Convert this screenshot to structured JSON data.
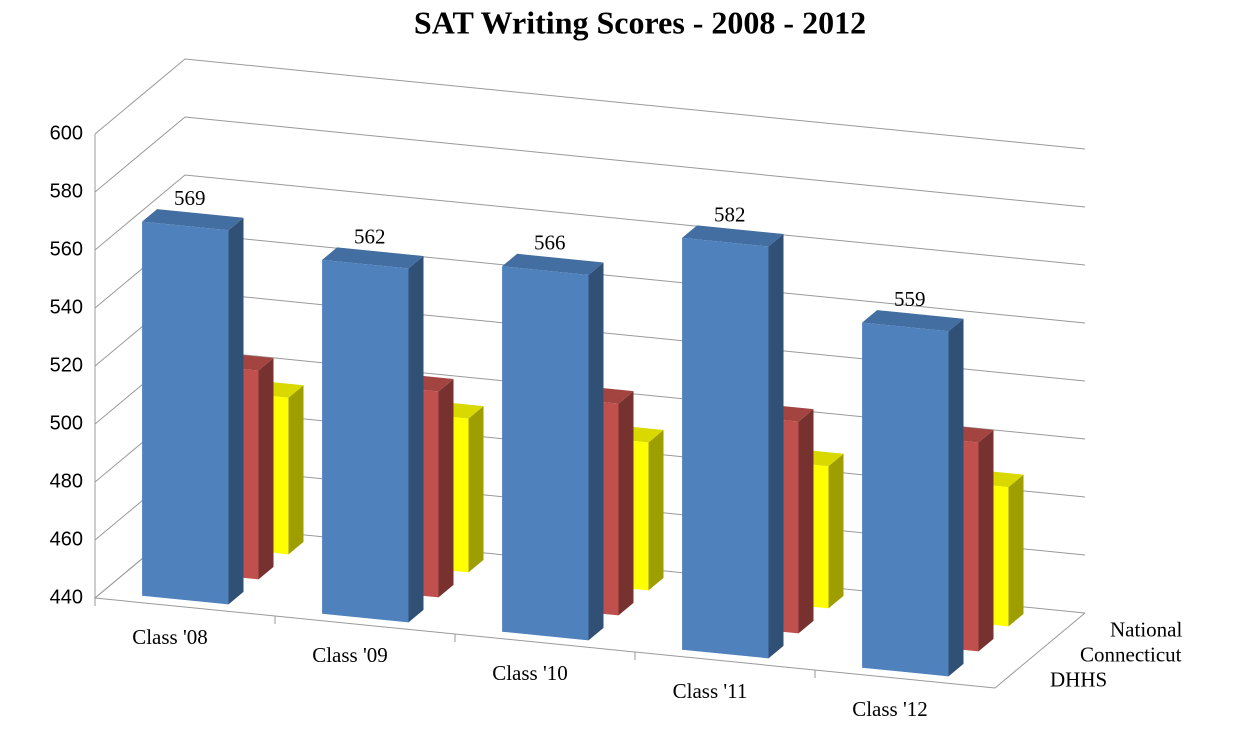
{
  "chart_data": {
    "type": "bar3d",
    "title": "SAT Writing Scores - 2008 - 2012",
    "categories": [
      "Class '08",
      "Class '09",
      "Class '10",
      "Class '11",
      "Class '12"
    ],
    "series": [
      {
        "name": "DHHS",
        "color": "#4f81bd",
        "values": [
          569,
          562,
          566,
          582,
          559
        ],
        "show_labels": true
      },
      {
        "name": "Connecticut",
        "color": "#c0504d",
        "values": [
          512,
          511,
          513,
          513,
          512
        ],
        "show_labels": false
      },
      {
        "name": "National",
        "color": "#ffff00",
        "values": [
          494,
          493,
          491,
          489,
          488
        ],
        "show_labels": false
      }
    ],
    "ylim": [
      440,
      600
    ],
    "yticks": [
      440,
      460,
      480,
      500,
      520,
      540,
      560,
      580,
      600
    ],
    "grid": true
  }
}
